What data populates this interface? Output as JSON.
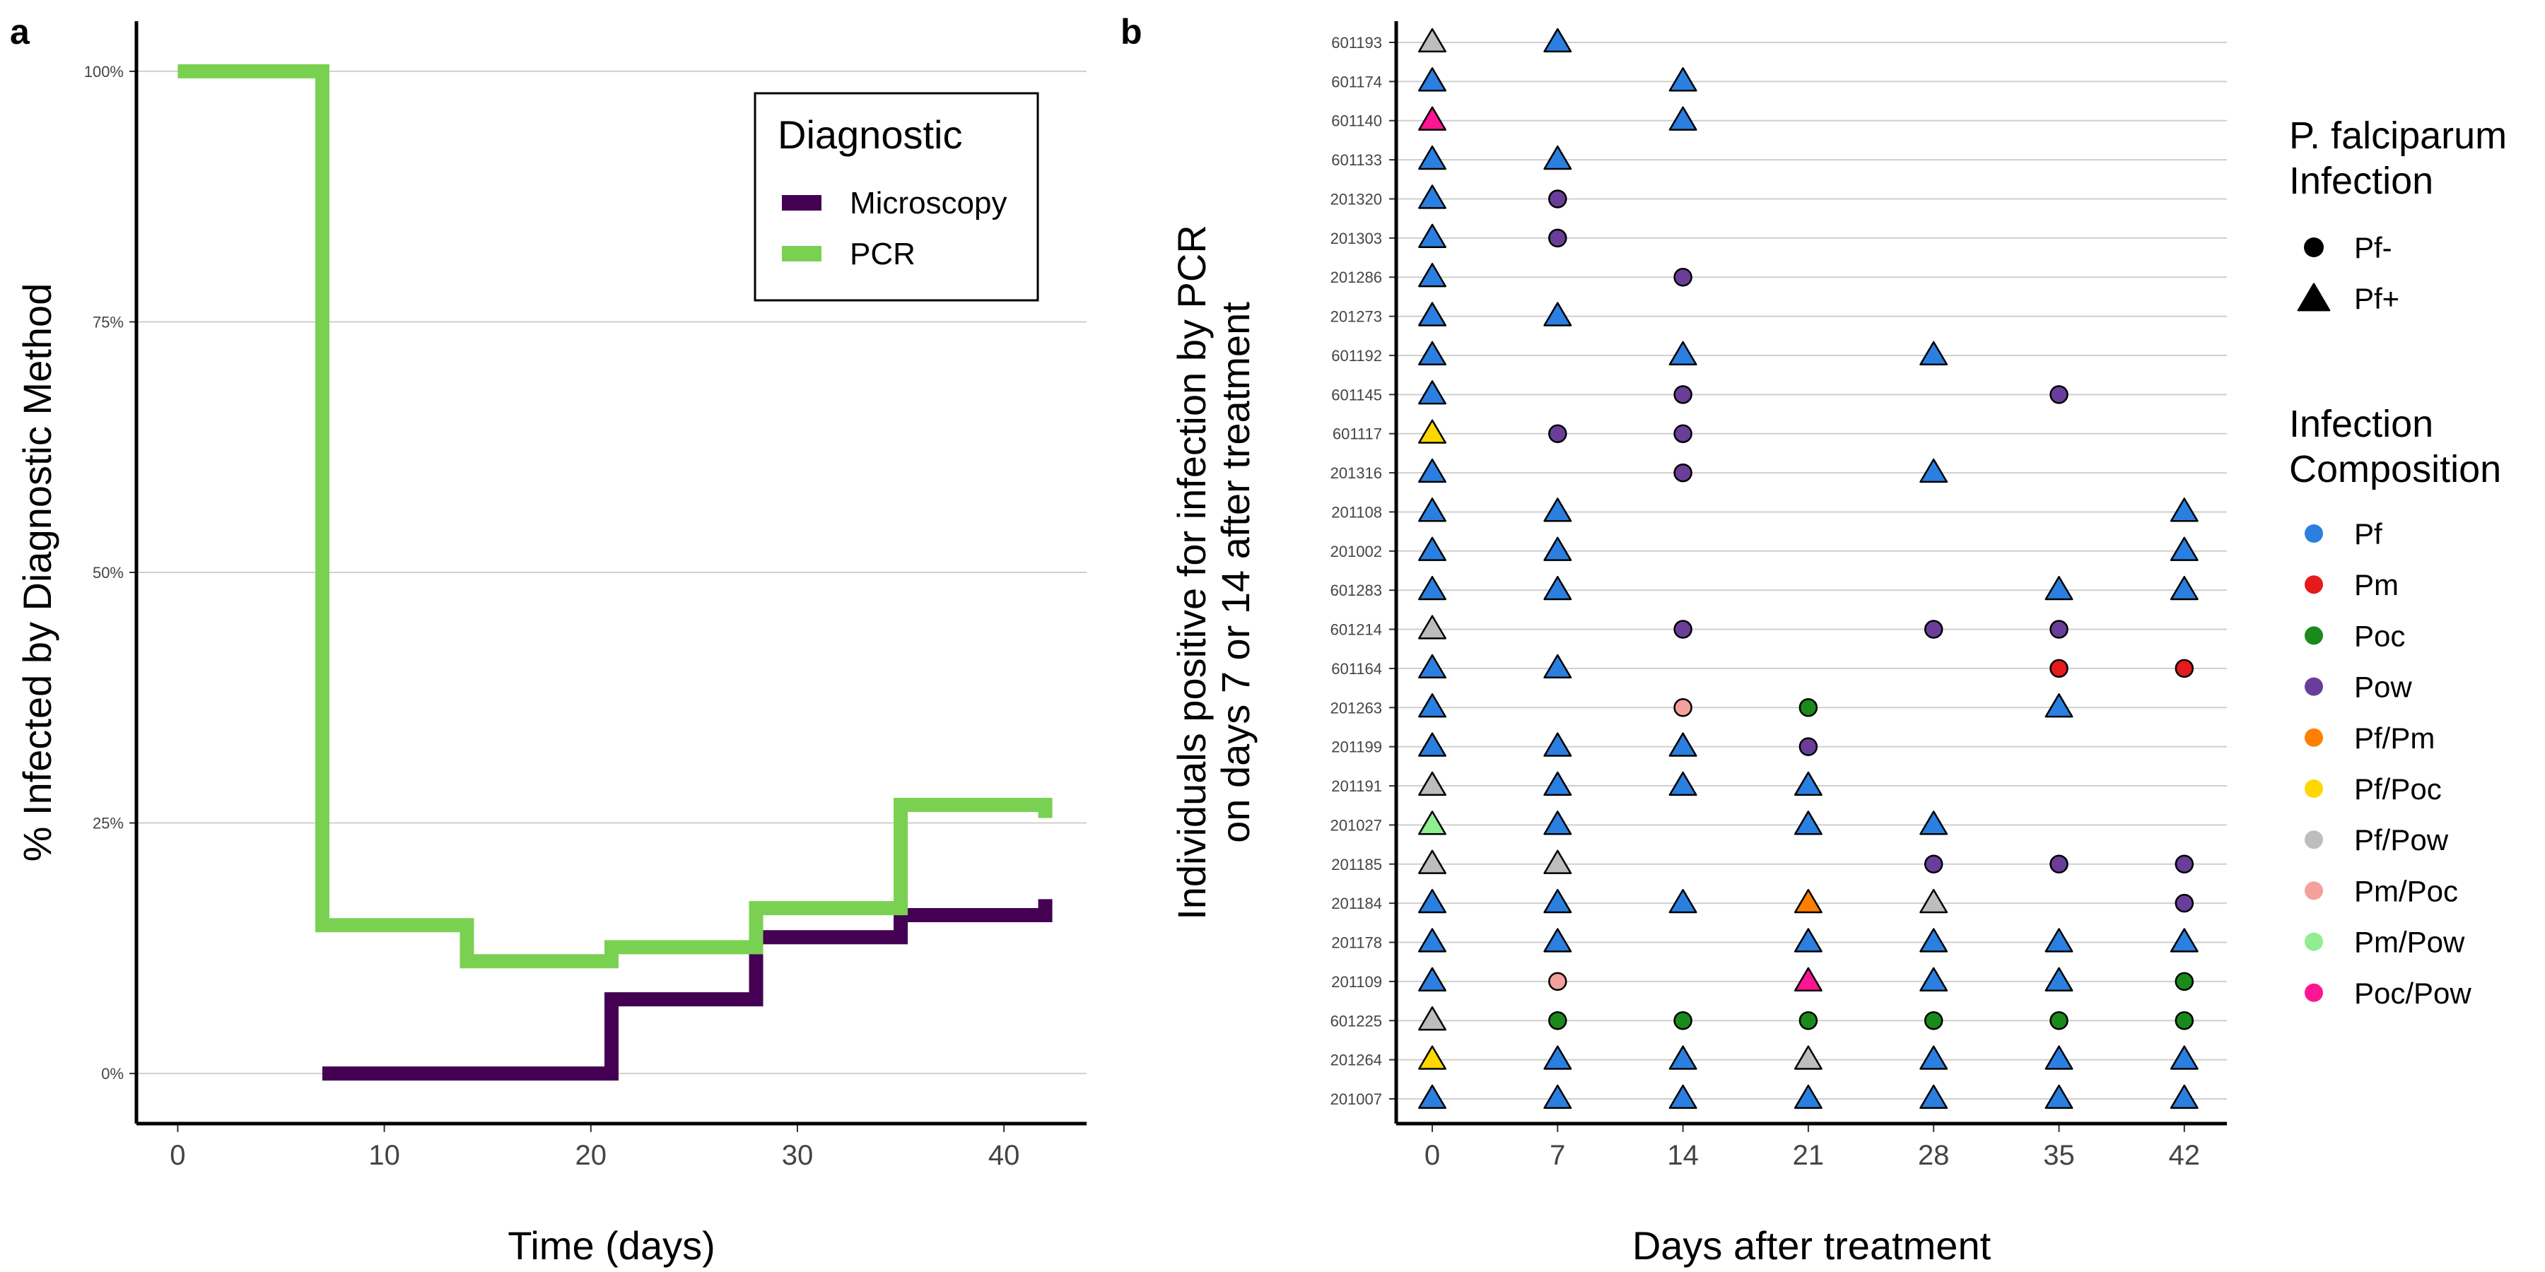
{
  "panel_a_letter": "a",
  "panel_b_letter": "b",
  "chart_data": [
    {
      "type": "line",
      "step": true,
      "xlabel": "Time (days)",
      "ylabel": "% Infected by Diagnostic Method",
      "xlim": [
        -2,
        44
      ],
      "ylim": [
        -5,
        105
      ],
      "x_ticks": [
        0,
        10,
        20,
        30,
        40
      ],
      "y_ticks": [
        0,
        25,
        50,
        75,
        100
      ],
      "y_tick_labels": [
        "0%",
        "25%",
        "50%",
        "75%",
        "100%"
      ],
      "grid": "horizontal major",
      "legend": {
        "title": "Diagnostic",
        "placement": "top-right"
      },
      "series": [
        {
          "name": "Microscopy",
          "color": "#440154",
          "x": [
            7,
            14,
            21,
            28,
            35,
            42
          ],
          "y": [
            0,
            0,
            7.4,
            13.6,
            15.8,
            17.4
          ]
        },
        {
          "name": "PCR",
          "color": "#7AD151",
          "x": [
            0,
            7,
            14,
            21,
            28,
            35,
            42
          ],
          "y": [
            100,
            14.8,
            11.2,
            12.6,
            16.5,
            26.8,
            25.5
          ]
        }
      ]
    },
    {
      "type": "scatter",
      "xlabel": "Days after treatment",
      "ylabel": [
        "Individuals positive for infection by PCR",
        "on days 7 or 14 after treatment"
      ],
      "x_ticks": [
        0,
        7,
        14,
        21,
        28,
        35,
        42
      ],
      "grid": "horizontal major",
      "legend_shape": {
        "title": [
          "P. falciparum",
          "Infection"
        ],
        "items": [
          {
            "label": "Pf-",
            "shape": "circle"
          },
          {
            "label": "Pf+",
            "shape": "triangle"
          }
        ]
      },
      "legend_composition": {
        "title": [
          "Infection",
          "Composition"
        ],
        "items": [
          {
            "label": "Pf",
            "color": "#2B7FE0"
          },
          {
            "label": "Pm",
            "color": "#E41A1C"
          },
          {
            "label": "Poc",
            "color": "#1A8A1A"
          },
          {
            "label": "Pow",
            "color": "#6A3D9A"
          },
          {
            "label": "Pf/Pm",
            "color": "#FF7F00"
          },
          {
            "label": "Pf/Poc",
            "color": "#FFD700"
          },
          {
            "label": "Pf/Pow",
            "color": "#BDBDBD"
          },
          {
            "label": "Pm/Poc",
            "color": "#F4A09C"
          },
          {
            "label": "Pm/Pow",
            "color": "#90EE90"
          },
          {
            "label": "Poc/Pow",
            "color": "#FF1493"
          }
        ]
      },
      "individuals": [
        "601193",
        "601174",
        "601140",
        "601133",
        "201320",
        "201303",
        "201286",
        "201273",
        "601192",
        "601145",
        "601117",
        "201316",
        "201108",
        "201002",
        "601283",
        "601214",
        "601164",
        "201263",
        "201199",
        "201191",
        "201027",
        "201185",
        "201184",
        "201178",
        "201109",
        "601225",
        "201264",
        "201007"
      ],
      "points": [
        {
          "id": "601193",
          "day": 0,
          "comp": "Pf/Pow",
          "pf": true
        },
        {
          "id": "601193",
          "day": 7,
          "comp": "Pf",
          "pf": true
        },
        {
          "id": "601174",
          "day": 0,
          "comp": "Pf",
          "pf": true
        },
        {
          "id": "601174",
          "day": 14,
          "comp": "Pf",
          "pf": true
        },
        {
          "id": "601140",
          "day": 0,
          "comp": "Poc/Pow",
          "pf": true
        },
        {
          "id": "601140",
          "day": 14,
          "comp": "Pf",
          "pf": true
        },
        {
          "id": "601133",
          "day": 0,
          "comp": "Pf",
          "pf": true
        },
        {
          "id": "601133",
          "day": 7,
          "comp": "Pf",
          "pf": true
        },
        {
          "id": "201320",
          "day": 0,
          "comp": "Pf",
          "pf": true
        },
        {
          "id": "201320",
          "day": 7,
          "comp": "Pow",
          "pf": false
        },
        {
          "id": "201303",
          "day": 0,
          "comp": "Pf",
          "pf": true
        },
        {
          "id": "201303",
          "day": 7,
          "comp": "Pow",
          "pf": false
        },
        {
          "id": "201286",
          "day": 0,
          "comp": "Pf",
          "pf": true
        },
        {
          "id": "201286",
          "day": 14,
          "comp": "Pow",
          "pf": false
        },
        {
          "id": "201273",
          "day": 0,
          "comp": "Pf",
          "pf": true
        },
        {
          "id": "201273",
          "day": 7,
          "comp": "Pf",
          "pf": true
        },
        {
          "id": "601192",
          "day": 0,
          "comp": "Pf",
          "pf": true
        },
        {
          "id": "601192",
          "day": 14,
          "comp": "Pf",
          "pf": true
        },
        {
          "id": "601192",
          "day": 28,
          "comp": "Pf",
          "pf": true
        },
        {
          "id": "601145",
          "day": 0,
          "comp": "Pf",
          "pf": true
        },
        {
          "id": "601145",
          "day": 14,
          "comp": "Pow",
          "pf": false
        },
        {
          "id": "601145",
          "day": 35,
          "comp": "Pow",
          "pf": false
        },
        {
          "id": "601117",
          "day": 0,
          "comp": "Pf/Poc",
          "pf": true
        },
        {
          "id": "601117",
          "day": 7,
          "comp": "Pow",
          "pf": false
        },
        {
          "id": "601117",
          "day": 14,
          "comp": "Pow",
          "pf": false
        },
        {
          "id": "201316",
          "day": 0,
          "comp": "Pf",
          "pf": true
        },
        {
          "id": "201316",
          "day": 14,
          "comp": "Pow",
          "pf": false
        },
        {
          "id": "201316",
          "day": 28,
          "comp": "Pf",
          "pf": true
        },
        {
          "id": "201108",
          "day": 0,
          "comp": "Pf",
          "pf": true
        },
        {
          "id": "201108",
          "day": 7,
          "comp": "Pf",
          "pf": true
        },
        {
          "id": "201108",
          "day": 42,
          "comp": "Pf",
          "pf": true
        },
        {
          "id": "201002",
          "day": 0,
          "comp": "Pf",
          "pf": true
        },
        {
          "id": "201002",
          "day": 7,
          "comp": "Pf",
          "pf": true
        },
        {
          "id": "201002",
          "day": 42,
          "comp": "Pf",
          "pf": true
        },
        {
          "id": "601283",
          "day": 0,
          "comp": "Pf",
          "pf": true
        },
        {
          "id": "601283",
          "day": 7,
          "comp": "Pf",
          "pf": true
        },
        {
          "id": "601283",
          "day": 35,
          "comp": "Pf",
          "pf": true
        },
        {
          "id": "601283",
          "day": 42,
          "comp": "Pf",
          "pf": true
        },
        {
          "id": "601214",
          "day": 0,
          "comp": "Pf/Pow",
          "pf": true
        },
        {
          "id": "601214",
          "day": 14,
          "comp": "Pow",
          "pf": false
        },
        {
          "id": "601214",
          "day": 28,
          "comp": "Pow",
          "pf": false
        },
        {
          "id": "601214",
          "day": 35,
          "comp": "Pow",
          "pf": false
        },
        {
          "id": "601164",
          "day": 0,
          "comp": "Pf",
          "pf": true
        },
        {
          "id": "601164",
          "day": 7,
          "comp": "Pf",
          "pf": true
        },
        {
          "id": "601164",
          "day": 35,
          "comp": "Pm",
          "pf": false
        },
        {
          "id": "601164",
          "day": 42,
          "comp": "Pm",
          "pf": false
        },
        {
          "id": "201263",
          "day": 0,
          "comp": "Pf",
          "pf": true
        },
        {
          "id": "201263",
          "day": 14,
          "comp": "Pm/Poc",
          "pf": false
        },
        {
          "id": "201263",
          "day": 21,
          "comp": "Poc",
          "pf": false
        },
        {
          "id": "201263",
          "day": 35,
          "comp": "Pf",
          "pf": true
        },
        {
          "id": "201199",
          "day": 0,
          "comp": "Pf",
          "pf": true
        },
        {
          "id": "201199",
          "day": 7,
          "comp": "Pf",
          "pf": true
        },
        {
          "id": "201199",
          "day": 14,
          "comp": "Pf",
          "pf": true
        },
        {
          "id": "201199",
          "day": 21,
          "comp": "Pow",
          "pf": false
        },
        {
          "id": "201191",
          "day": 0,
          "comp": "Pf/Pow",
          "pf": true
        },
        {
          "id": "201191",
          "day": 7,
          "comp": "Pf",
          "pf": true
        },
        {
          "id": "201191",
          "day": 14,
          "comp": "Pf",
          "pf": true
        },
        {
          "id": "201191",
          "day": 21,
          "comp": "Pf",
          "pf": true
        },
        {
          "id": "201027",
          "day": 0,
          "comp": "Pm/Pow",
          "pf": true
        },
        {
          "id": "201027",
          "day": 7,
          "comp": "Pf",
          "pf": true
        },
        {
          "id": "201027",
          "day": 21,
          "comp": "Pf",
          "pf": true
        },
        {
          "id": "201027",
          "day": 28,
          "comp": "Pf",
          "pf": true
        },
        {
          "id": "201185",
          "day": 0,
          "comp": "Pf/Pow",
          "pf": true
        },
        {
          "id": "201185",
          "day": 7,
          "comp": "Pf/Pow",
          "pf": true
        },
        {
          "id": "201185",
          "day": 28,
          "comp": "Pow",
          "pf": false
        },
        {
          "id": "201185",
          "day": 35,
          "comp": "Pow",
          "pf": false
        },
        {
          "id": "201185",
          "day": 42,
          "comp": "Pow",
          "pf": false
        },
        {
          "id": "201184",
          "day": 0,
          "comp": "Pf",
          "pf": true
        },
        {
          "id": "201184",
          "day": 7,
          "comp": "Pf",
          "pf": true
        },
        {
          "id": "201184",
          "day": 14,
          "comp": "Pf",
          "pf": true
        },
        {
          "id": "201184",
          "day": 21,
          "comp": "Pf/Pm",
          "pf": true
        },
        {
          "id": "201184",
          "day": 28,
          "comp": "Pf/Pow",
          "pf": true
        },
        {
          "id": "201184",
          "day": 42,
          "comp": "Pow",
          "pf": false
        },
        {
          "id": "201178",
          "day": 0,
          "comp": "Pf",
          "pf": true
        },
        {
          "id": "201178",
          "day": 7,
          "comp": "Pf",
          "pf": true
        },
        {
          "id": "201178",
          "day": 21,
          "comp": "Pf",
          "pf": true
        },
        {
          "id": "201178",
          "day": 28,
          "comp": "Pf",
          "pf": true
        },
        {
          "id": "201178",
          "day": 35,
          "comp": "Pf",
          "pf": true
        },
        {
          "id": "201178",
          "day": 42,
          "comp": "Pf",
          "pf": true
        },
        {
          "id": "201109",
          "day": 0,
          "comp": "Pf",
          "pf": true
        },
        {
          "id": "201109",
          "day": 7,
          "comp": "Pm/Poc",
          "pf": false
        },
        {
          "id": "201109",
          "day": 21,
          "comp": "Poc/Pow",
          "pf": true
        },
        {
          "id": "201109",
          "day": 28,
          "comp": "Pf",
          "pf": true
        },
        {
          "id": "201109",
          "day": 35,
          "comp": "Pf",
          "pf": true
        },
        {
          "id": "201109",
          "day": 42,
          "comp": "Poc",
          "pf": false
        },
        {
          "id": "601225",
          "day": 0,
          "comp": "Pf/Pow",
          "pf": true
        },
        {
          "id": "601225",
          "day": 7,
          "comp": "Poc",
          "pf": false
        },
        {
          "id": "601225",
          "day": 14,
          "comp": "Poc",
          "pf": false
        },
        {
          "id": "601225",
          "day": 21,
          "comp": "Poc",
          "pf": false
        },
        {
          "id": "601225",
          "day": 28,
          "comp": "Poc",
          "pf": false
        },
        {
          "id": "601225",
          "day": 35,
          "comp": "Poc",
          "pf": false
        },
        {
          "id": "601225",
          "day": 42,
          "comp": "Poc",
          "pf": false
        },
        {
          "id": "201264",
          "day": 0,
          "comp": "Pf/Poc",
          "pf": true
        },
        {
          "id": "201264",
          "day": 7,
          "comp": "Pf",
          "pf": true
        },
        {
          "id": "201264",
          "day": 14,
          "comp": "Pf",
          "pf": true
        },
        {
          "id": "201264",
          "day": 21,
          "comp": "Pf/Pow",
          "pf": true
        },
        {
          "id": "201264",
          "day": 28,
          "comp": "Pf",
          "pf": true
        },
        {
          "id": "201264",
          "day": 35,
          "comp": "Pf",
          "pf": true
        },
        {
          "id": "201264",
          "day": 42,
          "comp": "Pf",
          "pf": true
        },
        {
          "id": "201007",
          "day": 0,
          "comp": "Pf",
          "pf": true
        },
        {
          "id": "201007",
          "day": 7,
          "comp": "Pf",
          "pf": true
        },
        {
          "id": "201007",
          "day": 14,
          "comp": "Pf",
          "pf": true
        },
        {
          "id": "201007",
          "day": 21,
          "comp": "Pf",
          "pf": true
        },
        {
          "id": "201007",
          "day": 28,
          "comp": "Pf",
          "pf": true
        },
        {
          "id": "201007",
          "day": 35,
          "comp": "Pf",
          "pf": true
        },
        {
          "id": "201007",
          "day": 42,
          "comp": "Pf",
          "pf": true
        }
      ]
    }
  ]
}
